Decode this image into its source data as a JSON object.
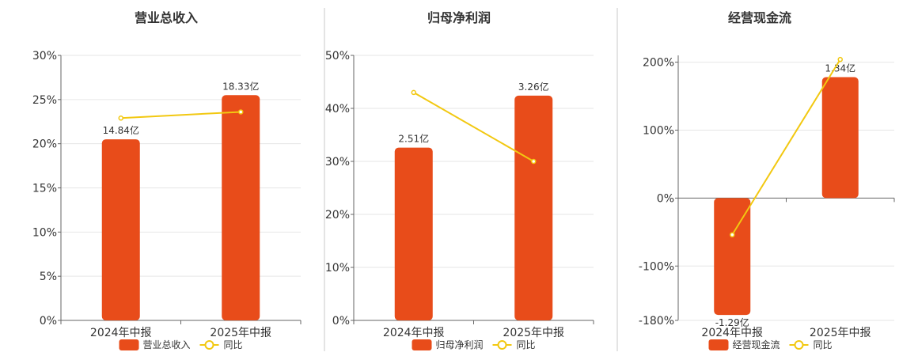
{
  "colors": {
    "bar": "#E84C1A",
    "line": "#F2C811",
    "grid": "#e6e6e6"
  },
  "chart_data": [
    {
      "type": "bar",
      "title": "营业总收入",
      "categories": [
        "2024年中报",
        "2025年中报"
      ],
      "y_ticks": [
        "0%",
        "5%",
        "10%",
        "15%",
        "20%",
        "25%",
        "30%"
      ],
      "ylim": [
        0,
        30
      ],
      "series": [
        {
          "name": "营业总收入",
          "kind": "bar",
          "values": [
            20.5,
            25.5
          ],
          "labels": [
            "14.84亿",
            "18.33亿"
          ]
        },
        {
          "name": "同比",
          "kind": "line",
          "values": [
            22.9,
            23.6
          ]
        }
      ],
      "legend": [
        "营业总收入",
        "同比"
      ],
      "legend_position": "bottom-center"
    },
    {
      "type": "bar",
      "title": "归母净利润",
      "categories": [
        "2024年中报",
        "2025年中报"
      ],
      "y_ticks": [
        "0%",
        "10%",
        "20%",
        "30%",
        "40%",
        "50%"
      ],
      "ylim": [
        0,
        50
      ],
      "series": [
        {
          "name": "归母净利润",
          "kind": "bar",
          "values": [
            32.6,
            42.4
          ],
          "labels": [
            "2.51亿",
            "3.26亿"
          ]
        },
        {
          "name": "同比",
          "kind": "line",
          "values": [
            43.0,
            30.0
          ]
        }
      ],
      "legend": [
        "归母净利润",
        "同比"
      ],
      "legend_position": "bottom-center"
    },
    {
      "type": "bar",
      "title": "经营现金流",
      "categories": [
        "2024年中报",
        "2025年中报"
      ],
      "y_ticks": [
        "-180%",
        "-100%",
        "0%",
        "100%",
        "200%"
      ],
      "y_tick_values": [
        -180,
        -100,
        0,
        100,
        200
      ],
      "ylim": [
        -180,
        210
      ],
      "series": [
        {
          "name": "经营现金流",
          "kind": "bar",
          "values": [
            -172,
            178
          ],
          "labels": [
            "-1.29亿",
            "1.34亿"
          ]
        },
        {
          "name": "同比",
          "kind": "line",
          "values": [
            -54,
            204
          ]
        }
      ],
      "legend": [
        "经营现金流",
        "同比"
      ],
      "legend_position": "bottom-center"
    }
  ]
}
